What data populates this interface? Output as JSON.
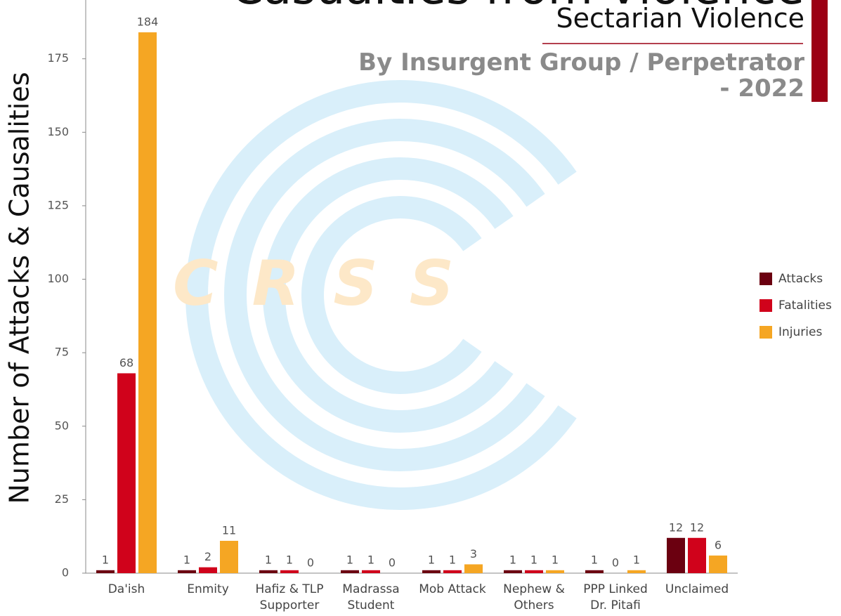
{
  "chart_data": {
    "type": "bar",
    "title": "Casualties from Violence",
    "subtitle": "Sectarian Violence",
    "subtitle2": "By Insurgent Group / Perpetrator\n- 2022",
    "watermark": "CRSS",
    "y_label": "Number of Attacks & Causalities",
    "categories": [
      "Da'ish",
      "Enmity",
      "Hafiz & TLP Supporter",
      "Madrassa Student",
      "Mob Attack",
      "Nephew & Others",
      "PPP Linked Dr. Pitafi",
      "Unclaimed"
    ],
    "series": [
      {
        "name": "Attacks",
        "color": "#6b0010",
        "values": [
          1,
          1,
          1,
          1,
          1,
          1,
          1,
          12
        ]
      },
      {
        "name": "Fatalities",
        "color": "#d0021b",
        "values": [
          68,
          2,
          1,
          1,
          1,
          1,
          0,
          12
        ]
      },
      {
        "name": "Injuries",
        "color": "#f5a623",
        "values": [
          184,
          11,
          0,
          0,
          3,
          1,
          1,
          6
        ]
      }
    ],
    "ylim": [
      0,
      195
    ],
    "yticks": [
      0,
      25,
      50,
      75,
      100,
      125,
      150,
      175
    ],
    "legend": "right"
  }
}
